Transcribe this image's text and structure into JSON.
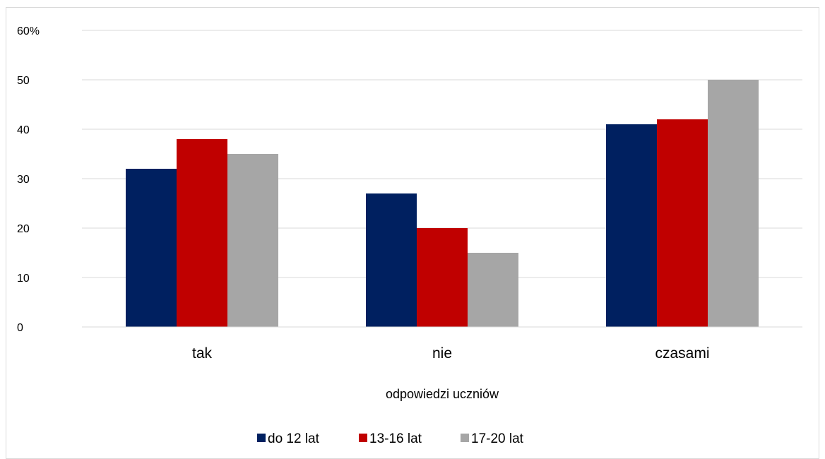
{
  "chart_data": {
    "type": "bar",
    "categories": [
      "tak",
      "nie",
      "czasami"
    ],
    "series": [
      {
        "name": "do 12 lat",
        "values": [
          32,
          27,
          41
        ],
        "color": "#002060"
      },
      {
        "name": "13-16 lat",
        "values": [
          38,
          20,
          42
        ],
        "color": "#c00000"
      },
      {
        "name": "17-20 lat",
        "values": [
          35,
          15,
          50
        ],
        "color": "#a6a6a6"
      }
    ],
    "y_tick_labels": [
      "0",
      "10",
      "20",
      "30",
      "40",
      "50",
      "60%"
    ],
    "ylim": [
      0,
      60
    ],
    "xlabel": "odpowiedzi uczniów",
    "grid": true,
    "legend_position": "bottom"
  }
}
